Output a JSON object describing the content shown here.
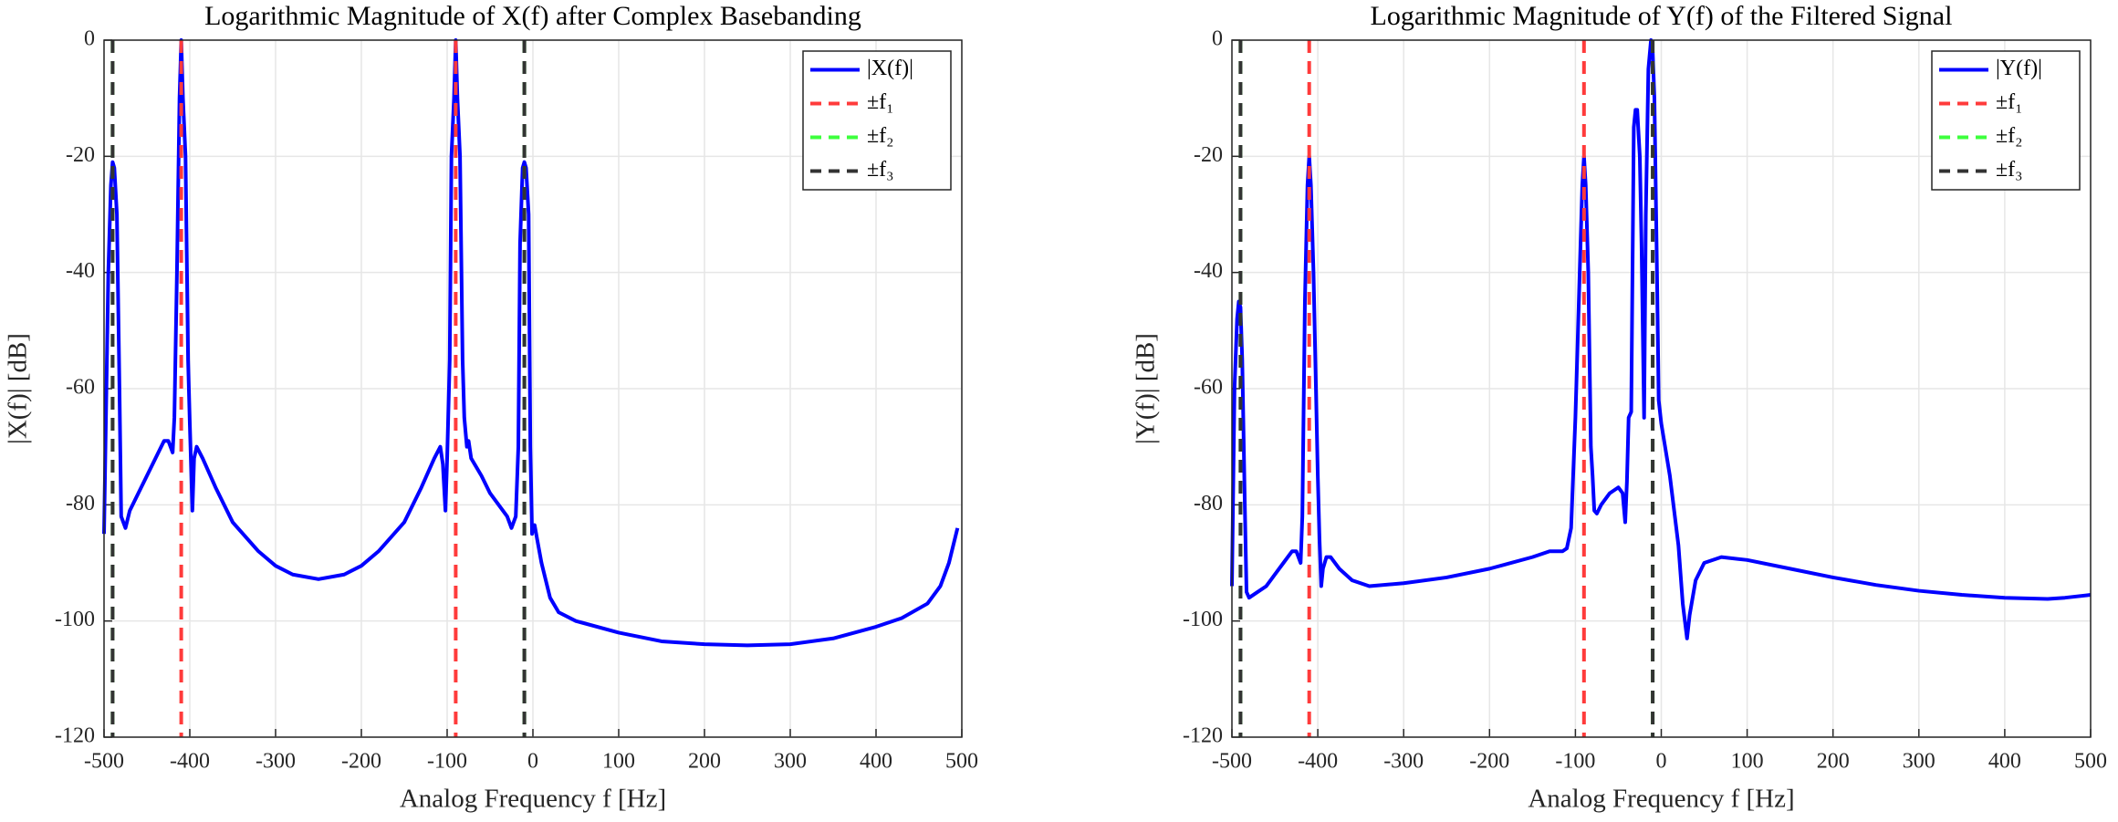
{
  "chart_data": [
    {
      "type": "line",
      "title": "Logarithmic Magnitude of X(f) after Complex Basebanding",
      "xlabel": "Analog Frequency f [Hz]",
      "ylabel": "|X(f)| [dB]",
      "x": [
        -500,
        -495,
        -492,
        -490,
        -488,
        -485,
        -482,
        -480,
        -475,
        -470,
        -460,
        -450,
        -440,
        -430,
        -425,
        -420,
        -418,
        -415,
        -412,
        -410,
        -408,
        -405,
        -402,
        -400,
        -397,
        -395,
        -392,
        -385,
        -370,
        -350,
        -320,
        -300,
        -280,
        -250,
        -220,
        -200,
        -180,
        -150,
        -130,
        -115,
        -108,
        -105,
        -102,
        -100,
        -97,
        -95,
        -92,
        -90,
        -88,
        -85,
        -82,
        -80,
        -77,
        -75,
        -72,
        -60,
        -50,
        -40,
        -30,
        -25,
        -20,
        -17,
        -15,
        -12,
        -10,
        -8,
        -5,
        -3,
        -1,
        0,
        2,
        5,
        10,
        20,
        30,
        50,
        100,
        150,
        200,
        250,
        300,
        350,
        400,
        430,
        460,
        475,
        485,
        490,
        495
      ],
      "series": [
        {
          "name": "|X(f)|",
          "color": "#0000ff",
          "values": [
            -85,
            -40,
            -25,
            -21,
            -22,
            -30,
            -60,
            -82,
            -84,
            -81,
            -78,
            -75,
            -72,
            -69,
            -69,
            -71,
            -65,
            -40,
            -10,
            0,
            -10,
            -20,
            -55,
            -66,
            -81,
            -72,
            -70,
            -72,
            -77,
            -83,
            -88,
            -90.5,
            -92,
            -92.8,
            -92,
            -90.5,
            -88,
            -83,
            -77,
            -72,
            -70,
            -73,
            -81,
            -72,
            -55,
            -20,
            -10,
            0,
            -10,
            -20,
            -55,
            -65,
            -70,
            -69,
            -72,
            -75,
            -78,
            -80,
            -82,
            -84,
            -82,
            -70,
            -35,
            -22,
            -21,
            -22,
            -30,
            -70,
            -85,
            -84,
            -83.5,
            -86,
            -90,
            -96,
            -98.5,
            -100,
            -102,
            -103.5,
            -104,
            -104.2,
            -104,
            -103,
            -101,
            -99.5,
            -97,
            -94,
            -90,
            -87,
            -84
          ]
        }
      ],
      "vlines": [
        {
          "name": "±f₁",
          "color": "#ff3b3b",
          "x": [
            -410,
            -90
          ]
        },
        {
          "name": "±f₂",
          "color": "#3dff3d",
          "x": [
            -490,
            -10
          ]
        },
        {
          "name": "±f₃",
          "color": "#333333",
          "x": [
            -490,
            -10
          ]
        }
      ],
      "xlim": [
        -500,
        500
      ],
      "ylim": [
        -120,
        0
      ],
      "xticks": [
        -500,
        -400,
        -300,
        -200,
        -100,
        0,
        100,
        200,
        300,
        400,
        500
      ],
      "yticks": [
        -120,
        -100,
        -80,
        -60,
        -40,
        -20,
        0
      ],
      "grid": true,
      "legend": "upper right"
    },
    {
      "type": "line",
      "title": "Logarithmic Magnitude of Y(f) of the Filtered Signal",
      "xlabel": "Analog Frequency f [Hz]",
      "ylabel": "|Y(f)| [dB]",
      "x": [
        -500,
        -497,
        -494,
        -492,
        -490,
        -488,
        -485,
        -483,
        -480,
        -470,
        -460,
        -450,
        -440,
        -430,
        -425,
        -420,
        -418,
        -415,
        -412,
        -410,
        -408,
        -405,
        -400,
        -398,
        -396,
        -394,
        -390,
        -385,
        -375,
        -360,
        -340,
        -300,
        -250,
        -200,
        -150,
        -130,
        -115,
        -110,
        -105,
        -100,
        -95,
        -92,
        -90,
        -88,
        -85,
        -82,
        -80,
        -78,
        -75,
        -70,
        -60,
        -50,
        -45,
        -42,
        -40,
        -38,
        -35,
        -32,
        -30,
        -28,
        -25,
        -23,
        -20,
        -18,
        -15,
        -12,
        -10,
        -8,
        -5,
        -3,
        0,
        10,
        20,
        25,
        30,
        33,
        40,
        50,
        70,
        100,
        150,
        200,
        250,
        300,
        350,
        400,
        450,
        470,
        500
      ],
      "series": [
        {
          "name": "|Y(f)|",
          "color": "#0000ff",
          "values": [
            -94,
            -60,
            -48,
            -45,
            -46,
            -55,
            -80,
            -95,
            -96,
            -95,
            -94,
            -92,
            -90,
            -88,
            -88,
            -90,
            -82,
            -45,
            -25,
            -20,
            -25,
            -40,
            -75,
            -86,
            -94,
            -91,
            -89,
            -89,
            -91,
            -93,
            -94,
            -93.5,
            -92.5,
            -91,
            -89,
            -88,
            -88,
            -87.5,
            -84,
            -65,
            -40,
            -25,
            -20,
            -25,
            -40,
            -70,
            -75,
            -81,
            -81.5,
            -80,
            -78,
            -77,
            -78,
            -83,
            -76,
            -65,
            -64,
            -15,
            -12,
            -12,
            -20,
            -35,
            -65,
            -30,
            -5,
            0,
            -2,
            -10,
            -40,
            -62,
            -66,
            -75,
            -87,
            -97,
            -103,
            -99,
            -93,
            -90,
            -89,
            -89.5,
            -91,
            -92.5,
            -93.8,
            -94.8,
            -95.5,
            -96,
            -96.2,
            -96,
            -95.5
          ]
        }
      ],
      "vlines": [
        {
          "name": "±f₁",
          "color": "#ff3b3b",
          "x": [
            -410,
            -90
          ]
        },
        {
          "name": "±f₂",
          "color": "#3dff3d",
          "x": [
            -490,
            -10
          ]
        },
        {
          "name": "±f₃",
          "color": "#333333",
          "x": [
            -490,
            -10
          ]
        }
      ],
      "xlim": [
        -500,
        500
      ],
      "ylim": [
        -120,
        0
      ],
      "xticks": [
        -500,
        -400,
        -300,
        -200,
        -100,
        0,
        100,
        200,
        300,
        400,
        500
      ],
      "yticks": [
        -120,
        -100,
        -80,
        -60,
        -40,
        -20,
        0
      ],
      "grid": true,
      "legend": "upper right"
    }
  ]
}
